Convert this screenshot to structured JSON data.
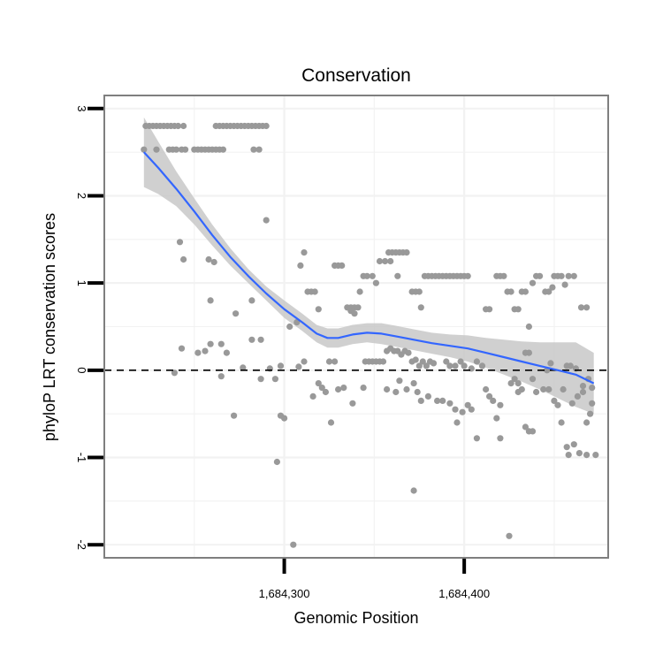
{
  "chart_data": {
    "type": "scatter",
    "title": "Conservation",
    "xlabel": "Genomic Position",
    "ylabel": "phyloP LRT conservation scores",
    "xlim": [
      1684200,
      1684480
    ],
    "ylim": [
      -2.15,
      3.15
    ],
    "x_ticks": [
      {
        "value": 1684300,
        "label": "1,684,300"
      },
      {
        "value": 1684400,
        "label": "1,684,400"
      }
    ],
    "y_ticks": [
      {
        "value": -2,
        "label": "-2"
      },
      {
        "value": -1,
        "label": "-1"
      },
      {
        "value": 0,
        "label": "0"
      },
      {
        "value": 1,
        "label": "1"
      },
      {
        "value": 2,
        "label": "2"
      },
      {
        "value": 3,
        "label": "3"
      }
    ],
    "x_minor_grid": [
      1684250,
      1684350,
      1684450
    ],
    "y_minor_grid": [
      -1.5,
      -0.5,
      0.5,
      1.5,
      2.5
    ],
    "reference_line": {
      "y": 0,
      "style": "dashed",
      "color": "#000000"
    },
    "colors": {
      "points": "#999999",
      "smooth": "#3366ff",
      "ribbon": "#c8c8c8",
      "panel_border": "#7f7f7f",
      "grid": "#f2f2f2"
    },
    "points": [
      [
        1684223,
        2.8
      ],
      [
        1684225,
        2.8
      ],
      [
        1684227,
        2.8
      ],
      [
        1684229,
        2.8
      ],
      [
        1684231,
        2.8
      ],
      [
        1684233,
        2.8
      ],
      [
        1684235,
        2.8
      ],
      [
        1684237,
        2.8
      ],
      [
        1684239,
        2.8
      ],
      [
        1684241,
        2.8
      ],
      [
        1684244,
        2.8
      ],
      [
        1684262,
        2.8
      ],
      [
        1684264,
        2.8
      ],
      [
        1684266,
        2.8
      ],
      [
        1684268,
        2.8
      ],
      [
        1684270,
        2.8
      ],
      [
        1684272,
        2.8
      ],
      [
        1684274,
        2.8
      ],
      [
        1684276,
        2.8
      ],
      [
        1684278,
        2.8
      ],
      [
        1684280,
        2.8
      ],
      [
        1684282,
        2.8
      ],
      [
        1684284,
        2.8
      ],
      [
        1684286,
        2.8
      ],
      [
        1684288,
        2.8
      ],
      [
        1684290,
        2.8
      ],
      [
        1684222,
        2.53
      ],
      [
        1684229,
        2.53
      ],
      [
        1684236,
        2.53
      ],
      [
        1684238,
        2.53
      ],
      [
        1684240,
        2.53
      ],
      [
        1684243,
        2.53
      ],
      [
        1684245,
        2.53
      ],
      [
        1684250,
        2.53
      ],
      [
        1684252,
        2.53
      ],
      [
        1684254,
        2.53
      ],
      [
        1684256,
        2.53
      ],
      [
        1684258,
        2.53
      ],
      [
        1684260,
        2.53
      ],
      [
        1684262,
        2.53
      ],
      [
        1684264,
        2.53
      ],
      [
        1684266,
        2.53
      ],
      [
        1684283,
        2.53
      ],
      [
        1684286,
        2.53
      ],
      [
        1684290,
        1.72
      ],
      [
        1684242,
        1.47
      ],
      [
        1684244,
        1.27
      ],
      [
        1684258,
        1.27
      ],
      [
        1684261,
        1.24
      ],
      [
        1684259,
        0.8
      ],
      [
        1684282,
        0.8
      ],
      [
        1684273,
        0.65
      ],
      [
        1684282,
        0.35
      ],
      [
        1684287,
        0.35
      ],
      [
        1684243,
        0.25
      ],
      [
        1684252,
        0.2
      ],
      [
        1684256,
        0.22
      ],
      [
        1684259,
        0.3
      ],
      [
        1684265,
        0.3
      ],
      [
        1684268,
        0.2
      ],
      [
        1684277,
        0.03
      ],
      [
        1684239,
        -0.03
      ],
      [
        1684265,
        -0.07
      ],
      [
        1684292,
        0.02
      ],
      [
        1684295,
        -0.1
      ],
      [
        1684298,
        0.05
      ],
      [
        1684287,
        -0.1
      ],
      [
        1684272,
        -0.52
      ],
      [
        1684298,
        -0.52
      ],
      [
        1684300,
        -0.55
      ],
      [
        1684296,
        -1.05
      ],
      [
        1684303,
        0.5
      ],
      [
        1684307,
        0.55
      ],
      [
        1684309,
        1.2
      ],
      [
        1684311,
        1.35
      ],
      [
        1684313,
        0.9
      ],
      [
        1684315,
        0.9
      ],
      [
        1684317,
        0.9
      ],
      [
        1684319,
        0.7
      ],
      [
        1684321,
        -0.2
      ],
      [
        1684323,
        -0.25
      ],
      [
        1684308,
        0.04
      ],
      [
        1684311,
        0.1
      ],
      [
        1684316,
        -0.3
      ],
      [
        1684319,
        -0.15
      ],
      [
        1684326,
        -0.6
      ],
      [
        1684325,
        0.1
      ],
      [
        1684328,
        0.1
      ],
      [
        1684305,
        -2.0
      ],
      [
        1684328,
        1.2
      ],
      [
        1684330,
        1.2
      ],
      [
        1684332,
        1.2
      ],
      [
        1684335,
        0.72
      ],
      [
        1684337,
        0.72
      ],
      [
        1684339,
        0.72
      ],
      [
        1684341,
        0.72
      ],
      [
        1684337,
        0.68
      ],
      [
        1684339,
        0.65
      ],
      [
        1684342,
        0.9
      ],
      [
        1684344,
        1.08
      ],
      [
        1684346,
        1.08
      ],
      [
        1684349,
        1.08
      ],
      [
        1684351,
        1.0
      ],
      [
        1684353,
        1.25
      ],
      [
        1684356,
        1.25
      ],
      [
        1684358,
        1.35
      ],
      [
        1684360,
        1.35
      ],
      [
        1684362,
        1.35
      ],
      [
        1684364,
        1.35
      ],
      [
        1684359,
        1.25
      ],
      [
        1684363,
        1.08
      ],
      [
        1684366,
        1.35
      ],
      [
        1684368,
        1.35
      ],
      [
        1684371,
        0.9
      ],
      [
        1684373,
        0.9
      ],
      [
        1684375,
        0.9
      ],
      [
        1684345,
        0.1
      ],
      [
        1684347,
        0.1
      ],
      [
        1684349,
        0.1
      ],
      [
        1684351,
        0.1
      ],
      [
        1684353,
        0.1
      ],
      [
        1684355,
        0.1
      ],
      [
        1684357,
        0.22
      ],
      [
        1684359,
        0.25
      ],
      [
        1684361,
        0.22
      ],
      [
        1684363,
        0.22
      ],
      [
        1684365,
        0.18
      ],
      [
        1684367,
        0.22
      ],
      [
        1684369,
        0.2
      ],
      [
        1684371,
        0.1
      ],
      [
        1684373,
        0.12
      ],
      [
        1684375,
        0.05
      ],
      [
        1684377,
        0.1
      ],
      [
        1684379,
        0.05
      ],
      [
        1684381,
        0.1
      ],
      [
        1684383,
        0.08
      ],
      [
        1684330,
        -0.22
      ],
      [
        1684333,
        -0.2
      ],
      [
        1684338,
        -0.38
      ],
      [
        1684344,
        -0.2
      ],
      [
        1684357,
        -0.22
      ],
      [
        1684362,
        -0.25
      ],
      [
        1684364,
        -0.12
      ],
      [
        1684368,
        -0.22
      ],
      [
        1684372,
        -0.15
      ],
      [
        1684374,
        -0.25
      ],
      [
        1684376,
        -0.35
      ],
      [
        1684380,
        -0.3
      ],
      [
        1684385,
        -0.35
      ],
      [
        1684372,
        -1.38
      ],
      [
        1684376,
        0.72
      ],
      [
        1684378,
        1.08
      ],
      [
        1684380,
        1.08
      ],
      [
        1684382,
        1.08
      ],
      [
        1684384,
        1.08
      ],
      [
        1684386,
        1.08
      ],
      [
        1684388,
        1.08
      ],
      [
        1684390,
        1.08
      ],
      [
        1684392,
        1.08
      ],
      [
        1684394,
        1.08
      ],
      [
        1684396,
        1.08
      ],
      [
        1684398,
        1.08
      ],
      [
        1684400,
        1.08
      ],
      [
        1684402,
        1.08
      ],
      [
        1684390,
        0.1
      ],
      [
        1684392,
        0.05
      ],
      [
        1684395,
        0.05
      ],
      [
        1684398,
        0.1
      ],
      [
        1684400,
        0.05
      ],
      [
        1684404,
        0.02
      ],
      [
        1684392,
        -0.38
      ],
      [
        1684395,
        -0.45
      ],
      [
        1684399,
        -0.48
      ],
      [
        1684402,
        -0.4
      ],
      [
        1684388,
        -0.35
      ],
      [
        1684396,
        -0.6
      ],
      [
        1684404,
        -0.45
      ],
      [
        1684407,
        0.1
      ],
      [
        1684410,
        0.05
      ],
      [
        1684412,
        -0.22
      ],
      [
        1684414,
        -0.3
      ],
      [
        1684416,
        -0.35
      ],
      [
        1684418,
        -0.55
      ],
      [
        1684420,
        -0.4
      ],
      [
        1684412,
        0.7
      ],
      [
        1684414,
        0.7
      ],
      [
        1684418,
        1.08
      ],
      [
        1684420,
        1.08
      ],
      [
        1684422,
        1.08
      ],
      [
        1684424,
        0.9
      ],
      [
        1684426,
        0.9
      ],
      [
        1684428,
        0.7
      ],
      [
        1684430,
        0.7
      ],
      [
        1684407,
        -0.78
      ],
      [
        1684420,
        -0.78
      ],
      [
        1684428,
        -0.1
      ],
      [
        1684430,
        -0.15
      ],
      [
        1684432,
        -0.22
      ],
      [
        1684434,
        0.2
      ],
      [
        1684436,
        0.2
      ],
      [
        1684425,
        -1.9
      ],
      [
        1684432,
        0.9
      ],
      [
        1684434,
        0.9
      ],
      [
        1684436,
        0.5
      ],
      [
        1684438,
        1.0
      ],
      [
        1684440,
        1.08
      ],
      [
        1684442,
        1.08
      ],
      [
        1684445,
        0.9
      ],
      [
        1684447,
        0.9
      ],
      [
        1684449,
        0.95
      ],
      [
        1684444,
        -0.22
      ],
      [
        1684447,
        -0.22
      ],
      [
        1684438,
        -0.1
      ],
      [
        1684440,
        -0.25
      ],
      [
        1684426,
        -0.15
      ],
      [
        1684430,
        -0.25
      ],
      [
        1684434,
        -0.65
      ],
      [
        1684436,
        -0.7
      ],
      [
        1684438,
        -0.7
      ],
      [
        1684450,
        1.08
      ],
      [
        1684452,
        1.08
      ],
      [
        1684454,
        1.08
      ],
      [
        1684456,
        0.98
      ],
      [
        1684458,
        1.08
      ],
      [
        1684461,
        1.08
      ],
      [
        1684450,
        -0.35
      ],
      [
        1684452,
        -0.4
      ],
      [
        1684455,
        -0.22
      ],
      [
        1684457,
        0.05
      ],
      [
        1684459,
        0.05
      ],
      [
        1684460,
        -0.38
      ],
      [
        1684462,
        0.02
      ],
      [
        1684454,
        -0.6
      ],
      [
        1684457,
        -0.88
      ],
      [
        1684458,
        -0.97
      ],
      [
        1684461,
        -0.85
      ],
      [
        1684463,
        -0.3
      ],
      [
        1684464,
        -0.95
      ],
      [
        1684466,
        -0.18
      ],
      [
        1684468,
        -0.97
      ],
      [
        1684465,
        0.72
      ],
      [
        1684468,
        0.72
      ],
      [
        1684466,
        -0.25
      ],
      [
        1684468,
        -0.6
      ],
      [
        1684470,
        -0.5
      ],
      [
        1684471,
        -0.2
      ],
      [
        1684471,
        -0.38
      ],
      [
        1684473,
        -0.97
      ],
      [
        1684469,
        -0.1
      ],
      [
        1684448,
        0.08
      ],
      [
        1684446,
        0.0
      ]
    ],
    "smooth": {
      "x": [
        1684222,
        1684230,
        1684240,
        1684250,
        1684260,
        1684270,
        1684280,
        1684290,
        1684300,
        1684310,
        1684318,
        1684324,
        1684330,
        1684338,
        1684346,
        1684354,
        1684362,
        1684372,
        1684382,
        1684392,
        1684402,
        1684412,
        1684422,
        1684432,
        1684442,
        1684452,
        1684462,
        1684472
      ],
      "y": [
        2.5,
        2.32,
        2.08,
        1.82,
        1.55,
        1.3,
        1.08,
        0.88,
        0.7,
        0.55,
        0.42,
        0.37,
        0.37,
        0.41,
        0.43,
        0.42,
        0.39,
        0.35,
        0.31,
        0.28,
        0.25,
        0.2,
        0.15,
        0.1,
        0.05,
        0.0,
        -0.05,
        -0.15
      ],
      "lower": [
        2.1,
        2.02,
        1.88,
        1.67,
        1.43,
        1.2,
        1.0,
        0.8,
        0.6,
        0.45,
        0.32,
        0.26,
        0.26,
        0.3,
        0.32,
        0.3,
        0.27,
        0.23,
        0.19,
        0.15,
        0.1,
        0.03,
        -0.05,
        -0.13,
        -0.22,
        -0.32,
        -0.42,
        -0.5
      ],
      "upper": [
        2.9,
        2.62,
        2.28,
        1.97,
        1.67,
        1.4,
        1.16,
        0.96,
        0.8,
        0.65,
        0.52,
        0.48,
        0.48,
        0.52,
        0.54,
        0.54,
        0.51,
        0.47,
        0.43,
        0.41,
        0.4,
        0.37,
        0.35,
        0.33,
        0.32,
        0.32,
        0.32,
        0.2
      ]
    }
  }
}
